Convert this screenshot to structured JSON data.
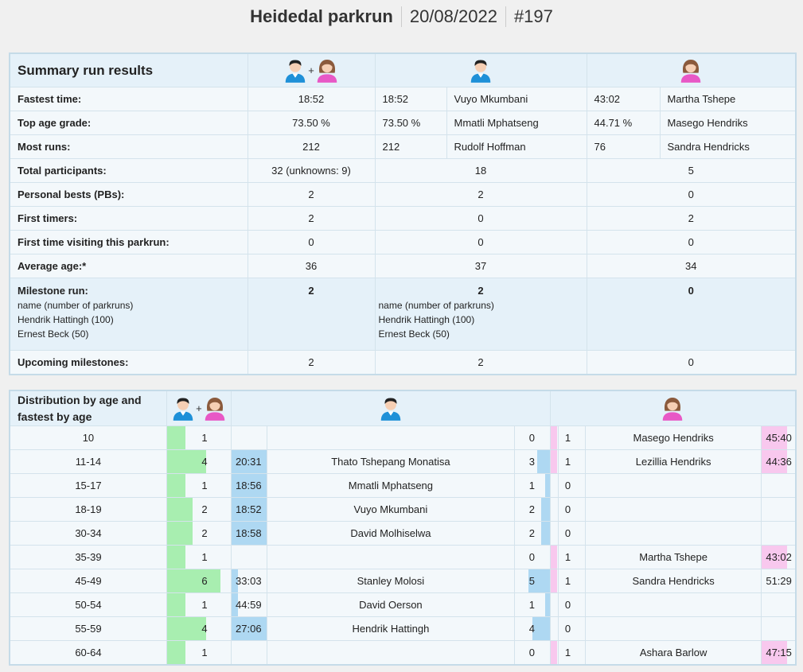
{
  "header": {
    "name": "Heidedal parkrun",
    "date": "20/08/2022",
    "event": "#197"
  },
  "summary": {
    "title": "Summary run results",
    "rows": {
      "fastest": {
        "label": "Fastest time:",
        "all": "18:52",
        "m_val": "18:52",
        "m_name": "Vuyo Mkumbani",
        "f_val": "43:02",
        "f_name": "Martha Tshepe"
      },
      "agegrade": {
        "label": "Top age grade:",
        "all": "73.50 %",
        "m_val": "73.50 %",
        "m_name": "Mmatli Mphatseng",
        "f_val": "44.71 %",
        "f_name": "Masego Hendriks"
      },
      "mostruns": {
        "label": "Most runs:",
        "all": "212",
        "m_val": "212",
        "m_name": "Rudolf Hoffman",
        "f_val": "76",
        "f_name": "Sandra Hendricks"
      },
      "total": {
        "label": "Total participants:",
        "all": "32 (unknowns: 9)",
        "m": "18",
        "f": "5"
      },
      "pbs": {
        "label": "Personal bests (PBs):",
        "all": "2",
        "m": "2",
        "f": "0"
      },
      "first": {
        "label": "First timers:",
        "all": "2",
        "m": "0",
        "f": "2"
      },
      "visit": {
        "label": "First time visiting this parkrun:",
        "all": "0",
        "m": "0",
        "f": "0"
      },
      "age": {
        "label": "Average age:*",
        "all": "36",
        "m": "37",
        "f": "34"
      },
      "milestone": {
        "label": "Milestone run:",
        "all": "2",
        "m": "2",
        "f": "0",
        "sub": "name (number of parkruns)",
        "names": [
          "Hendrik Hattingh (100)",
          "Ernest Beck (50)"
        ]
      },
      "upcoming": {
        "label": "Upcoming milestones:",
        "all": "2",
        "m": "2",
        "f": "0"
      }
    }
  },
  "distribution": {
    "title": "Distribution by age and fastest by age",
    "colors": {
      "all": "#a8eeb0",
      "male": "#aed8f2",
      "female": "#f8c8ee"
    },
    "rows": [
      {
        "age": "10",
        "all": 1,
        "m_time": "",
        "m_name": "",
        "m_count": 0,
        "f_count": 1,
        "f_name": "Masego Hendriks",
        "f_time": "45:40"
      },
      {
        "age": "11-14",
        "all": 4,
        "m_time": "20:31",
        "m_name": "Thato Tshepang Monatisa",
        "m_count": 3,
        "f_count": 1,
        "f_name": "Lezillia Hendriks",
        "f_time": "44:36"
      },
      {
        "age": "15-17",
        "all": 1,
        "m_time": "18:56",
        "m_name": "Mmatli Mphatseng",
        "m_count": 1,
        "f_count": 0,
        "f_name": "",
        "f_time": ""
      },
      {
        "age": "18-19",
        "all": 2,
        "m_time": "18:52",
        "m_name": "Vuyo Mkumbani",
        "m_count": 2,
        "f_count": 0,
        "f_name": "",
        "f_time": ""
      },
      {
        "age": "30-34",
        "all": 2,
        "m_time": "18:58",
        "m_name": "David Molhiselwa",
        "m_count": 2,
        "f_count": 0,
        "f_name": "",
        "f_time": ""
      },
      {
        "age": "35-39",
        "all": 1,
        "m_time": "",
        "m_name": "",
        "m_count": 0,
        "f_count": 1,
        "f_name": "Martha Tshepe",
        "f_time": "43:02"
      },
      {
        "age": "45-49",
        "all": 6,
        "m_time": "33:03",
        "m_name": "Stanley Molosi",
        "m_count": 5,
        "f_count": 1,
        "f_name": "Sandra Hendricks",
        "f_time": "51:29"
      },
      {
        "age": "50-54",
        "all": 1,
        "m_time": "44:59",
        "m_name": "David Oerson",
        "m_count": 1,
        "f_count": 0,
        "f_name": "",
        "f_time": ""
      },
      {
        "age": "55-59",
        "all": 4,
        "m_time": "27:06",
        "m_name": "Hendrik Hattingh",
        "m_count": 4,
        "f_count": 0,
        "f_name": "",
        "f_time": ""
      },
      {
        "age": "60-64",
        "all": 1,
        "m_time": "",
        "m_name": "",
        "m_count": 0,
        "f_count": 1,
        "f_name": "Ashara Barlow",
        "f_time": "47:15"
      }
    ]
  }
}
